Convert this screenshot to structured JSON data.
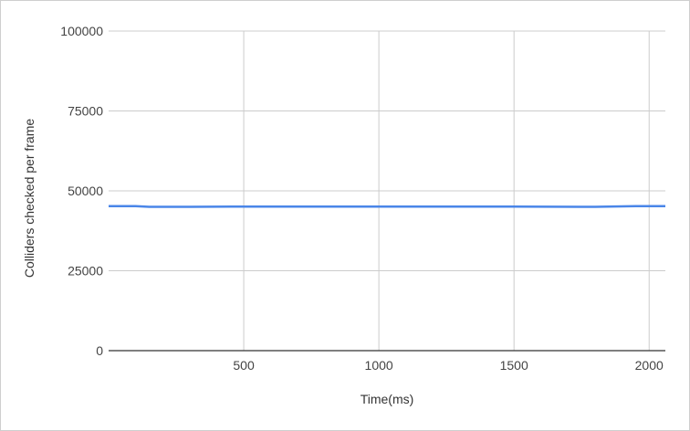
{
  "chart_data": {
    "type": "line",
    "title": "",
    "xlabel": "Time(ms)",
    "ylabel": "Colliders checked per frame",
    "xlim": [
      0,
      2060
    ],
    "ylim": [
      0,
      100000
    ],
    "x_ticks": [
      500,
      1000,
      1500,
      2000
    ],
    "y_ticks": [
      0,
      25000,
      50000,
      75000,
      100000
    ],
    "x_tick_labels": [
      "500",
      "1000",
      "1500",
      "2000"
    ],
    "y_tick_labels": [
      "0",
      "25000",
      "50000",
      "75000",
      "100000"
    ],
    "grid": true,
    "legend": "none",
    "series": [
      {
        "color": "#4a86e8",
        "x": [
          0,
          100,
          150,
          300,
          500,
          800,
          1000,
          1300,
          1500,
          1800,
          1950,
          2060
        ],
        "y": [
          45200,
          45200,
          45000,
          45000,
          45100,
          45100,
          45100,
          45100,
          45100,
          45000,
          45200,
          45200
        ]
      }
    ]
  }
}
